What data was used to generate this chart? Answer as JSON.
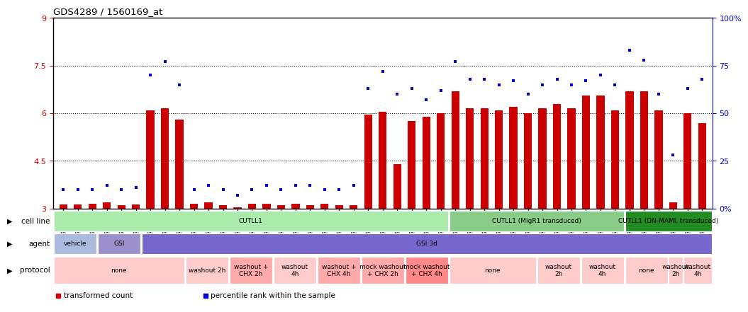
{
  "title": "GDS4289 / 1560169_at",
  "samples": [
    "GSM731500",
    "GSM731501",
    "GSM731502",
    "GSM731503",
    "GSM731504",
    "GSM731505",
    "GSM731518",
    "GSM731519",
    "GSM731520",
    "GSM731506",
    "GSM731507",
    "GSM731508",
    "GSM731509",
    "GSM731510",
    "GSM731511",
    "GSM731512",
    "GSM731513",
    "GSM731514",
    "GSM731515",
    "GSM731516",
    "GSM731517",
    "GSM731521",
    "GSM731522",
    "GSM731523",
    "GSM731524",
    "GSM731525",
    "GSM731526",
    "GSM731527",
    "GSM731528",
    "GSM731529",
    "GSM731531",
    "GSM731532",
    "GSM731533",
    "GSM731534",
    "GSM731535",
    "GSM731536",
    "GSM731537",
    "GSM731538",
    "GSM731539",
    "GSM731540",
    "GSM731541",
    "GSM731542",
    "GSM731543",
    "GSM731544",
    "GSM731545"
  ],
  "bar_values": [
    3.12,
    3.12,
    3.15,
    3.2,
    3.1,
    3.12,
    6.1,
    6.15,
    5.8,
    3.15,
    3.2,
    3.1,
    3.05,
    3.15,
    3.15,
    3.1,
    3.15,
    3.1,
    3.15,
    3.1,
    3.1,
    5.95,
    6.05,
    4.4,
    5.75,
    5.9,
    6.0,
    6.7,
    6.15,
    6.15,
    6.1,
    6.2,
    6.0,
    6.15,
    6.3,
    6.15,
    6.55,
    6.55,
    6.1,
    6.7,
    6.7,
    6.1,
    3.2,
    6.0,
    5.7
  ],
  "pct_values": [
    10,
    10,
    10,
    12,
    10,
    11,
    70,
    77,
    65,
    10,
    12,
    10,
    7,
    10,
    12,
    10,
    12,
    12,
    10,
    10,
    12,
    63,
    72,
    60,
    63,
    57,
    62,
    77,
    68,
    68,
    65,
    67,
    60,
    65,
    68,
    65,
    67,
    70,
    65,
    83,
    78,
    60,
    28,
    63,
    68
  ],
  "ylim_left": [
    3.0,
    9.0
  ],
  "yticks_left": [
    3.0,
    4.5,
    6.0,
    7.5,
    9.0
  ],
  "ytick_labels_left": [
    "3",
    "4.5",
    "6",
    "7.5",
    "9"
  ],
  "ylim_right": [
    0,
    100
  ],
  "yticks_right": [
    0,
    25,
    50,
    75,
    100
  ],
  "ytick_labels_right": [
    "0%",
    "25",
    "50",
    "75",
    "100%"
  ],
  "bar_color": "#CC0000",
  "dot_color": "#0000CC",
  "hgrid_values": [
    4.5,
    6.0,
    7.5
  ],
  "cell_line_segments": [
    {
      "label": "CUTLL1",
      "start": 0,
      "end": 27,
      "color": "#AAEAAA"
    },
    {
      "label": "CUTLL1 (MigR1 transduced)",
      "start": 27,
      "end": 39,
      "color": "#88CC88"
    },
    {
      "label": "CUTLL1 (DN-MAML transduced)",
      "start": 39,
      "end": 45,
      "color": "#228B22"
    }
  ],
  "agent_segments": [
    {
      "label": "vehicle",
      "start": 0,
      "end": 3,
      "color": "#AABBDD"
    },
    {
      "label": "GSI",
      "start": 3,
      "end": 6,
      "color": "#9B8FCC"
    },
    {
      "label": "GSI 3d",
      "start": 6,
      "end": 45,
      "color": "#7766CC"
    }
  ],
  "protocol_segments": [
    {
      "label": "none",
      "start": 0,
      "end": 9,
      "color": "#FFCCCC"
    },
    {
      "label": "washout 2h",
      "start": 9,
      "end": 12,
      "color": "#FFCCCC"
    },
    {
      "label": "washout +\nCHX 2h",
      "start": 12,
      "end": 15,
      "color": "#FFAAAA"
    },
    {
      "label": "washout\n4h",
      "start": 15,
      "end": 18,
      "color": "#FFCCCC"
    },
    {
      "label": "washout +\nCHX 4h",
      "start": 18,
      "end": 21,
      "color": "#FFAAAA"
    },
    {
      "label": "mock washout\n+ CHX 2h",
      "start": 21,
      "end": 24,
      "color": "#FFAAAA"
    },
    {
      "label": "mock washout\n+ CHX 4h",
      "start": 24,
      "end": 27,
      "color": "#FF8888"
    },
    {
      "label": "none",
      "start": 27,
      "end": 33,
      "color": "#FFCCCC"
    },
    {
      "label": "washout\n2h",
      "start": 33,
      "end": 36,
      "color": "#FFCCCC"
    },
    {
      "label": "washout\n4h",
      "start": 36,
      "end": 39,
      "color": "#FFCCCC"
    },
    {
      "label": "none",
      "start": 39,
      "end": 42,
      "color": "#FFCCCC"
    },
    {
      "label": "washout\n2h",
      "start": 42,
      "end": 43,
      "color": "#FFCCCC"
    },
    {
      "label": "washout\n4h",
      "start": 43,
      "end": 45,
      "color": "#FFCCCC"
    }
  ],
  "legend": [
    {
      "label": "transformed count",
      "color": "#CC0000"
    },
    {
      "label": "percentile rank within the sample",
      "color": "#0000CC"
    }
  ]
}
